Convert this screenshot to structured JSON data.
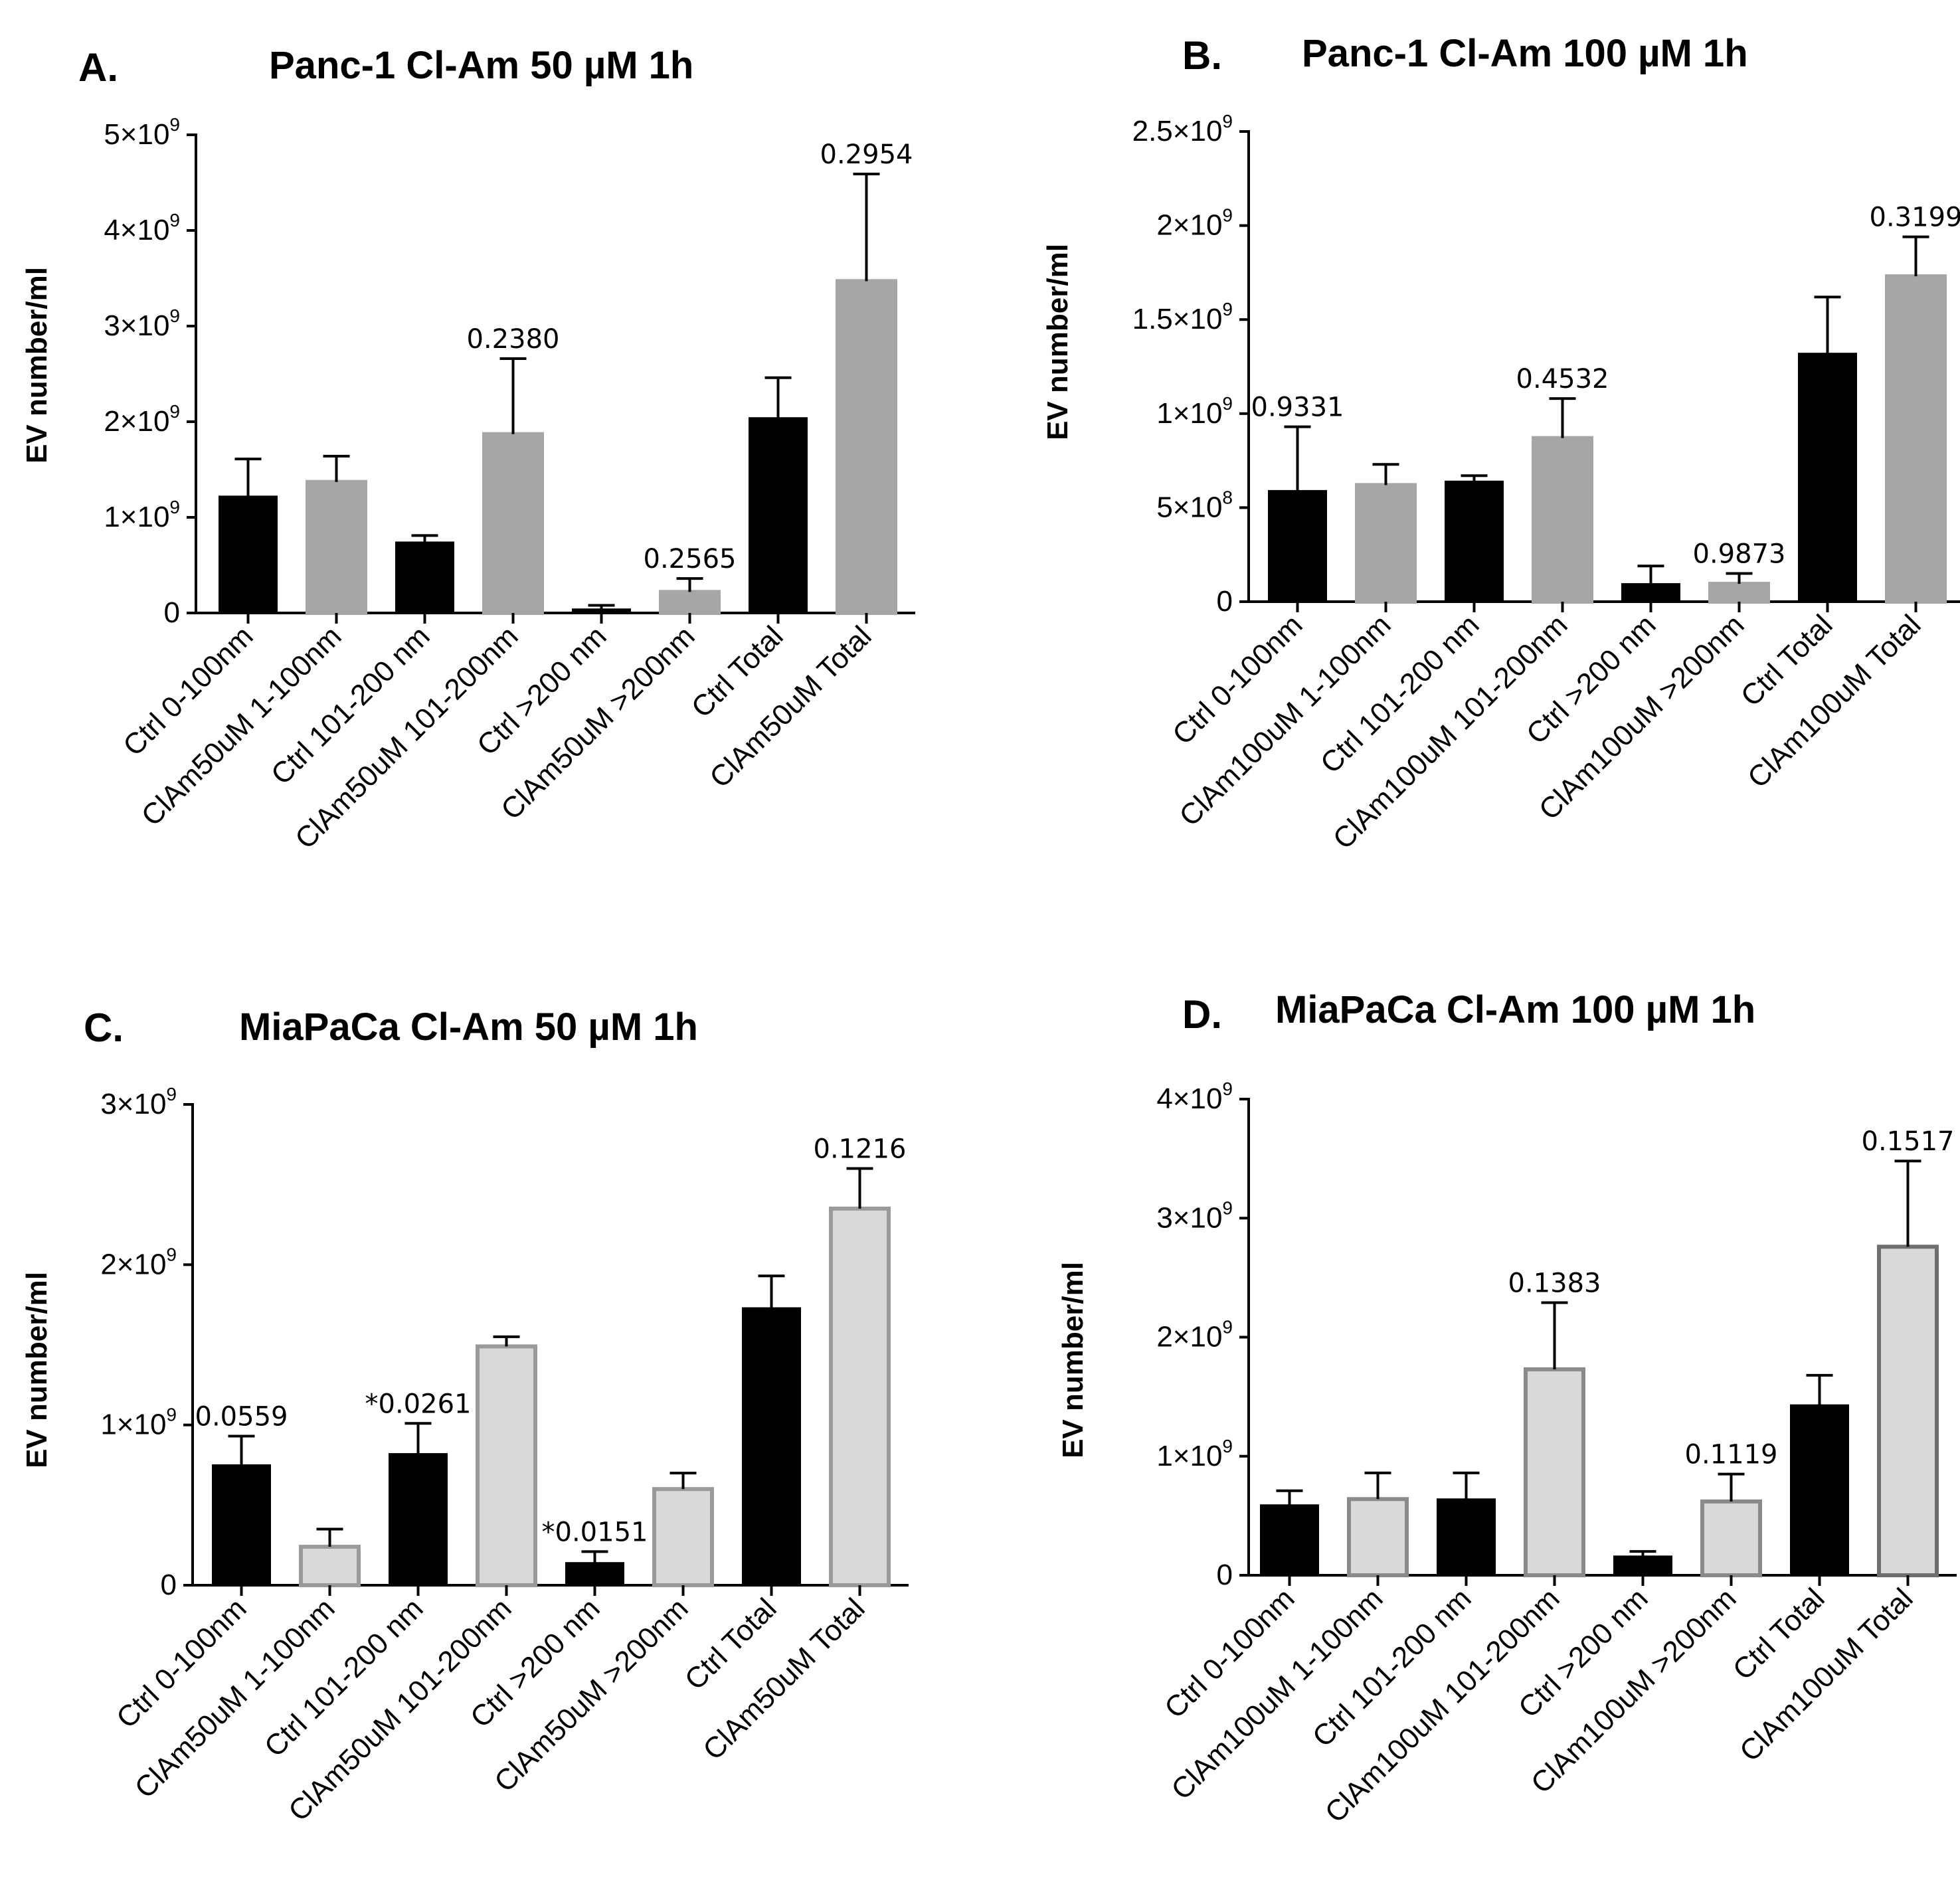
{
  "chart_data": [
    {
      "type": "bar",
      "panel_letter": "A.",
      "title": "Panc-1 Cl-Am 50 µM 1h",
      "ylabel": "EV number/ml",
      "xlabel": "",
      "ylim": [
        0,
        5000000000
      ],
      "y_ticks": [
        {
          "value": 0,
          "mantissa": "0",
          "exp": ""
        },
        {
          "value": 1000000000,
          "mantissa": "1×10",
          "exp": "9"
        },
        {
          "value": 2000000000,
          "mantissa": "2×10",
          "exp": "9"
        },
        {
          "value": 3000000000,
          "mantissa": "3×10",
          "exp": "9"
        },
        {
          "value": 4000000000,
          "mantissa": "4×10",
          "exp": "9"
        },
        {
          "value": 5000000000,
          "mantissa": "5×10",
          "exp": "9"
        }
      ],
      "categories": [
        "Ctrl 0-100nm",
        "ClAm50uM 1-100nm",
        "Ctrl 101-200 nm",
        "ClAm50uM 101-200nm",
        "Ctrl >200 nm",
        "ClAm50uM >200nm",
        "Ctrl Total",
        "ClAm50uM Total"
      ],
      "values": [
        1220000000,
        1370000000,
        740000000,
        1870000000,
        40000000,
        220000000,
        2040000000,
        3470000000
      ],
      "errors": [
        390000000,
        270000000,
        70000000,
        790000000,
        40000000,
        140000000,
        420000000,
        1120000000
      ],
      "bar_fill": [
        "#000000",
        "#a6a6a6",
        "#000000",
        "#a6a6a6",
        "#000000",
        "#a6a6a6",
        "#000000",
        "#a6a6a6"
      ],
      "bar_stroke": [
        "#000000",
        "#a6a6a6",
        "#000000",
        "#a6a6a6",
        "#000000",
        "#a6a6a6",
        "#000000",
        "#a6a6a6"
      ],
      "annotations": [
        {
          "bar": 3,
          "text": "0.2380"
        },
        {
          "bar": 5,
          "text": "0.2565"
        },
        {
          "bar": 7,
          "text": "0.2954"
        }
      ]
    },
    {
      "type": "bar",
      "panel_letter": "B.",
      "title": "Panc-1 Cl-Am 100 µM 1h",
      "ylabel": "EV number/ml",
      "xlabel": "",
      "ylim": [
        0,
        2500000000
      ],
      "y_ticks": [
        {
          "value": 0,
          "mantissa": "0",
          "exp": ""
        },
        {
          "value": 500000000,
          "mantissa": "5×10",
          "exp": "8"
        },
        {
          "value": 1000000000,
          "mantissa": "1×10",
          "exp": "9"
        },
        {
          "value": 1500000000,
          "mantissa": "1.5×10",
          "exp": "9"
        },
        {
          "value": 2000000000,
          "mantissa": "2×10",
          "exp": "9"
        },
        {
          "value": 2500000000,
          "mantissa": "2.5×10",
          "exp": "9"
        }
      ],
      "categories": [
        "Ctrl 0-100nm",
        "ClAm100uM 1-100nm",
        "Ctrl 101-200 nm",
        "ClAm100uM 101-200nm",
        "Ctrl >200 nm",
        "ClAm100uM >200nm",
        "Ctrl Total",
        "ClAm100uM Total"
      ],
      "values": [
        590000000,
        620000000,
        640000000,
        870000000,
        95000000,
        95000000,
        1320000000,
        1730000000
      ],
      "errors": [
        340000000,
        110000000,
        30000000,
        210000000,
        95000000,
        55000000,
        300000000,
        210000000
      ],
      "bar_fill": [
        "#000000",
        "#a6a6a6",
        "#000000",
        "#a6a6a6",
        "#000000",
        "#a6a6a6",
        "#000000",
        "#a6a6a6"
      ],
      "bar_stroke": [
        "#000000",
        "#a6a6a6",
        "#000000",
        "#a6a6a6",
        "#000000",
        "#a6a6a6",
        "#000000",
        "#a6a6a6"
      ],
      "annotations": [
        {
          "bar": 0,
          "text": "0.9331"
        },
        {
          "bar": 3,
          "text": "0.4532"
        },
        {
          "bar": 5,
          "text": "0.9873"
        },
        {
          "bar": 7,
          "text": "0.3199"
        }
      ]
    },
    {
      "type": "bar",
      "panel_letter": "C.",
      "title": "MiaPaCa Cl-Am 50 µM 1h",
      "ylabel": "EV number/ml",
      "xlabel": "",
      "ylim": [
        0,
        3000000000
      ],
      "y_ticks": [
        {
          "value": 0,
          "mantissa": "0",
          "exp": ""
        },
        {
          "value": 1000000000,
          "mantissa": "1×10",
          "exp": "9"
        },
        {
          "value": 2000000000,
          "mantissa": "2×10",
          "exp": "9"
        },
        {
          "value": 3000000000,
          "mantissa": "3×10",
          "exp": "9"
        }
      ],
      "categories": [
        "Ctrl 0-100nm",
        "ClAm50uM 1-100nm",
        "Ctrl 101-200 nm",
        "ClAm50uM 101-200nm",
        "Ctrl >200 nm",
        "ClAm50uM >200nm",
        "Ctrl Total",
        "ClAm50uM Total"
      ],
      "values": [
        750000000,
        240000000,
        820000000,
        1490000000,
        140000000,
        600000000,
        1730000000,
        2350000000
      ],
      "errors": [
        180000000,
        110000000,
        190000000,
        60000000,
        70000000,
        100000000,
        200000000,
        250000000
      ],
      "bar_fill": [
        "#000000",
        "#d9d9d9",
        "#000000",
        "#d9d9d9",
        "#000000",
        "#d9d9d9",
        "#000000",
        "#d9d9d9"
      ],
      "bar_stroke": [
        "#000000",
        "#9a9a9a",
        "#000000",
        "#9a9a9a",
        "#000000",
        "#9a9a9a",
        "#000000",
        "#9a9a9a"
      ],
      "annotations": [
        {
          "bar": 0,
          "text": "0.0559"
        },
        {
          "bar": 2,
          "text": "*0.0261"
        },
        {
          "bar": 4,
          "text": "*0.0151"
        },
        {
          "bar": 7,
          "text": "0.1216"
        }
      ]
    },
    {
      "type": "bar",
      "panel_letter": "D.",
      "title": "MiaPaCa Cl-Am 100 µM 1h",
      "ylabel": "EV number/ml",
      "xlabel": "",
      "ylim": [
        0,
        4000000000
      ],
      "y_ticks": [
        {
          "value": 0,
          "mantissa": "0",
          "exp": ""
        },
        {
          "value": 1000000000,
          "mantissa": "1×10",
          "exp": "9"
        },
        {
          "value": 2000000000,
          "mantissa": "2×10",
          "exp": "9"
        },
        {
          "value": 3000000000,
          "mantissa": "3×10",
          "exp": "9"
        },
        {
          "value": 4000000000,
          "mantissa": "4×10",
          "exp": "9"
        }
      ],
      "categories": [
        "Ctrl 0-100nm",
        "ClAm100uM 1-100nm",
        "Ctrl 101-200 nm",
        "ClAm100uM 101-200nm",
        "Ctrl >200 nm",
        "ClAm100uM >200nm",
        "Ctrl Total",
        "ClAm100uM Total"
      ],
      "values": [
        590000000,
        640000000,
        640000000,
        1730000000,
        160000000,
        620000000,
        1430000000,
        2760000000
      ],
      "errors": [
        120000000,
        220000000,
        220000000,
        560000000,
        40000000,
        230000000,
        250000000,
        720000000
      ],
      "bar_fill": [
        "#000000",
        "#d9d9d9",
        "#000000",
        "#d9d9d9",
        "#000000",
        "#d9d9d9",
        "#000000",
        "#d9d9d9"
      ],
      "bar_stroke": [
        "#000000",
        "#8a8a8a",
        "#000000",
        "#8a8a8a",
        "#000000",
        "#8a8a8a",
        "#000000",
        "#6e6e6e"
      ],
      "annotations": [
        {
          "bar": 3,
          "text": "0.1383"
        },
        {
          "bar": 5,
          "text": "0.1119"
        },
        {
          "bar": 7,
          "text": "0.1517"
        }
      ]
    }
  ]
}
